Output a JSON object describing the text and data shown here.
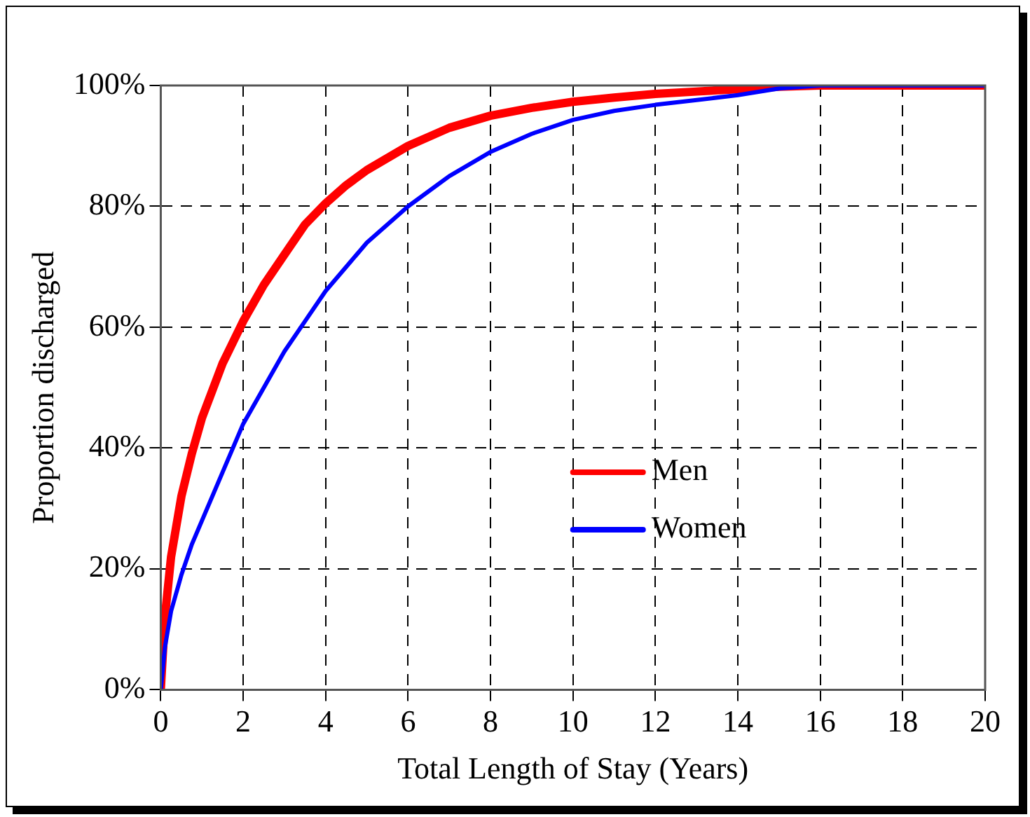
{
  "chart_data": {
    "type": "line",
    "xlabel": "Total Length of Stay (Years)",
    "ylabel": "Proportion discharged",
    "series": [
      {
        "name": "Men",
        "color": "#ff0000",
        "x": [
          0,
          0.1,
          0.25,
          0.5,
          0.75,
          1,
          1.5,
          2,
          2.5,
          3,
          3.5,
          4,
          4.5,
          5,
          6,
          7,
          8,
          9,
          10,
          11,
          12,
          13,
          14,
          15,
          16,
          18,
          20
        ],
        "values": [
          0,
          12,
          22,
          32,
          39,
          45,
          54,
          61,
          67,
          72,
          77,
          80.5,
          83.5,
          86,
          90,
          93,
          95,
          96.3,
          97.3,
          98,
          98.6,
          99,
          99.4,
          99.8,
          100,
          100,
          100
        ]
      },
      {
        "name": "Women",
        "color": "#0000ff",
        "x": [
          0,
          0.1,
          0.25,
          0.5,
          0.75,
          1,
          1.5,
          2,
          2.5,
          3,
          3.5,
          4,
          4.5,
          5,
          6,
          7,
          8,
          9,
          10,
          11,
          12,
          13,
          14,
          15,
          16,
          18,
          20
        ],
        "values": [
          0,
          7,
          13,
          19,
          24,
          28,
          36,
          44,
          50,
          56,
          61,
          66,
          70,
          74,
          80,
          85,
          89,
          92,
          94.3,
          95.8,
          96.8,
          97.6,
          98.4,
          99.5,
          100,
          100,
          100
        ]
      }
    ],
    "xlim": [
      0,
      20
    ],
    "xticks": [
      0,
      2,
      4,
      6,
      8,
      10,
      12,
      14,
      16,
      18,
      20
    ],
    "ylim": [
      0,
      100
    ],
    "yticks": [
      {
        "value": 0,
        "label": "0%"
      },
      {
        "value": 20,
        "label": "20%"
      },
      {
        "value": 40,
        "label": "40%"
      },
      {
        "value": 60,
        "label": "60%"
      },
      {
        "value": 80,
        "label": "80%"
      },
      {
        "value": 100,
        "label": "100%"
      }
    ],
    "grid": true,
    "legend": "right",
    "marker": "none",
    "line_style": "solid"
  }
}
